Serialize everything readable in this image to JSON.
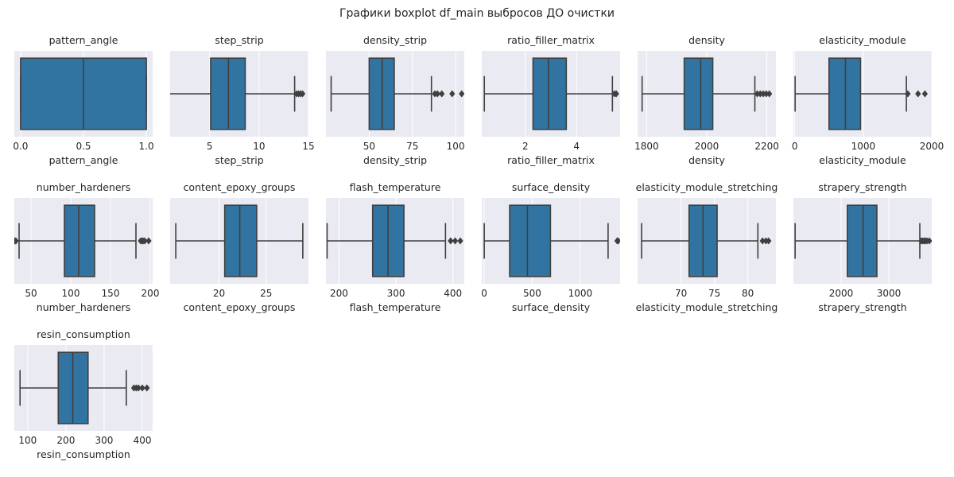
{
  "figure": {
    "suptitle": "Графики boxplot df_main выбросов ДО очистки",
    "colors": {
      "background": "#eaeaf2",
      "box": "#3274a1",
      "line": "#3f3f3f",
      "grid": "#ffffff"
    }
  },
  "chart_data": [
    {
      "type": "box",
      "title": "pattern_angle",
      "xlabel": "pattern_angle",
      "xlim": [
        -0.05,
        1.05
      ],
      "ticks": [
        0,
        0.5,
        1
      ],
      "tick_labels": [
        "0.0",
        "0.5",
        "1.0"
      ],
      "whisker_low": 0,
      "q1": 0,
      "median": 0.5,
      "q3": 1,
      "whisker_high": 1,
      "outliers": []
    },
    {
      "type": "box",
      "title": "step_strip",
      "xlabel": "step_strip",
      "xlim": [
        1,
        15
      ],
      "ticks": [
        5,
        10,
        15
      ],
      "tick_labels": [
        "5",
        "10",
        "15"
      ],
      "whisker_low": 0.5,
      "q1": 5.1,
      "median": 6.9,
      "q3": 8.6,
      "whisker_high": 13.6,
      "outliers": [
        13.8,
        14.0,
        14.2,
        14.4
      ]
    },
    {
      "type": "box",
      "title": "density_strip",
      "xlabel": "density_strip",
      "xlim": [
        25,
        105
      ],
      "ticks": [
        50,
        75,
        100
      ],
      "tick_labels": [
        "50",
        "75",
        "100"
      ],
      "whisker_low": 28,
      "q1": 50,
      "median": 57.5,
      "q3": 64.5,
      "whisker_high": 86,
      "outliers": [
        88,
        89.5,
        92,
        98,
        103.5
      ]
    },
    {
      "type": "box",
      "title": "ratio_filler_matrix",
      "xlabel": "ratio_filler_matrix",
      "xlim": [
        0.3,
        5.7
      ],
      "ticks": [
        2,
        4
      ],
      "tick_labels": [
        "2",
        "4"
      ],
      "whisker_low": 0.4,
      "q1": 2.3,
      "median": 2.9,
      "q3": 3.6,
      "whisker_high": 5.4,
      "outliers": [
        5.48,
        5.55
      ]
    },
    {
      "type": "box",
      "title": "density",
      "xlabel": "density",
      "xlim": [
        1770,
        2230
      ],
      "ticks": [
        1800,
        2000,
        2200
      ],
      "tick_labels": [
        "1800",
        "2000",
        "2200"
      ],
      "whisker_low": 1785,
      "q1": 1925,
      "median": 1980,
      "q3": 2020,
      "whisker_high": 2160,
      "outliers": [
        2168,
        2178,
        2188,
        2198,
        2208
      ]
    },
    {
      "type": "box",
      "title": "elasticity_module",
      "xlabel": "elasticity_module",
      "xlim": [
        -20,
        2000
      ],
      "ticks": [
        0,
        1000,
        2000
      ],
      "tick_labels": [
        "0",
        "1000",
        "2000"
      ],
      "whisker_low": 5,
      "q1": 500,
      "median": 740,
      "q3": 960,
      "whisker_high": 1630,
      "outliers": [
        1650,
        1800,
        1900
      ]
    },
    {
      "type": "box",
      "title": "number_hardeners",
      "xlabel": "number_hardeners",
      "xlim": [
        29,
        203
      ],
      "ticks": [
        50,
        100,
        150,
        200
      ],
      "tick_labels": [
        "50",
        "100",
        "150",
        "200"
      ],
      "whisker_low": 35,
      "q1": 92,
      "median": 110,
      "q3": 130,
      "whisker_high": 182,
      "outliers": [
        29,
        30,
        31,
        188,
        190,
        191,
        193,
        198
      ]
    },
    {
      "type": "box",
      "title": "content_epoxy_groups",
      "xlabel": "content_epoxy_groups",
      "xlim": [
        14.8,
        29.5
      ],
      "ticks": [
        20,
        25
      ],
      "tick_labels": [
        "20",
        "25"
      ],
      "whisker_low": 15.4,
      "q1": 20.6,
      "median": 22.2,
      "q3": 24,
      "whisker_high": 28.9,
      "outliers": []
    },
    {
      "type": "box",
      "title": "flash_temperature",
      "xlabel": "flash_temperature",
      "xlim": [
        177,
        420
      ],
      "ticks": [
        200,
        300,
        400
      ],
      "tick_labels": [
        "200",
        "300",
        "400"
      ],
      "whisker_low": 179,
      "q1": 259,
      "median": 286,
      "q3": 314,
      "whisker_high": 387,
      "outliers": [
        396,
        404,
        413
      ]
    },
    {
      "type": "box",
      "title": "surface_density",
      "xlabel": "surface_density",
      "xlim": [
        -25,
        1415
      ],
      "ticks": [
        0,
        500,
        1000
      ],
      "tick_labels": [
        "0",
        "500",
        "1000"
      ],
      "whisker_low": 1,
      "q1": 265,
      "median": 450,
      "q3": 690,
      "whisker_high": 1290,
      "outliers": [
        1385,
        1395
      ]
    },
    {
      "type": "box",
      "title": "elasticity_module_stretching",
      "xlabel": "elasticity_module_stretching",
      "xlim": [
        63.5,
        84.2
      ],
      "ticks": [
        70,
        75,
        80
      ],
      "tick_labels": [
        "70",
        "75",
        "80"
      ],
      "whisker_low": 64.1,
      "q1": 71.2,
      "median": 73.3,
      "q3": 75.4,
      "whisker_high": 81.5,
      "outliers": [
        82.2,
        82.7,
        83.1
      ]
    },
    {
      "type": "box",
      "title": "strapery_strength",
      "xlabel": "strapery_strength",
      "xlim": [
        1000,
        3900
      ],
      "ticks": [
        2000,
        3000
      ],
      "tick_labels": [
        "2000",
        "3000"
      ],
      "whisker_low": 1036,
      "q1": 2130,
      "median": 2460,
      "q3": 2750,
      "whisker_high": 3650,
      "outliers": [
        3680,
        3710,
        3740,
        3770,
        3800,
        3850
      ]
    },
    {
      "type": "box",
      "title": "resin_consumption",
      "xlabel": "resin_consumption",
      "xlim": [
        65,
        427
      ],
      "ticks": [
        100,
        200,
        300,
        400
      ],
      "tick_labels": [
        "100",
        "200",
        "300",
        "400"
      ],
      "whisker_low": 80,
      "q1": 180,
      "median": 218,
      "q3": 258,
      "whisker_high": 358,
      "outliers": [
        378,
        384,
        390,
        400,
        412
      ]
    }
  ]
}
